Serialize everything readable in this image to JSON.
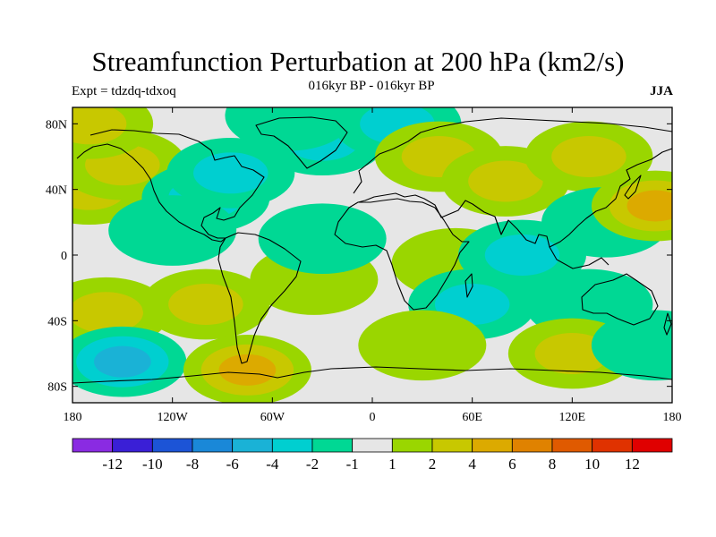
{
  "title": "Streamfunction Perturbation at 200 hPa (km2/s)",
  "subtitle": "016kyr BP - 016kyr BP",
  "left_label": "Expt = tdzdq-tdxoq",
  "right_label": "JJA",
  "lat_labels": [
    "80N",
    "40N",
    "0",
    "40S",
    "80S"
  ],
  "lon_labels": [
    "180",
    "120W",
    "60W",
    "0",
    "60E",
    "120E",
    "180"
  ],
  "colorbar": {
    "colors": [
      "#8a2be2",
      "#3a1fd6",
      "#1c54d6",
      "#1a88d8",
      "#1ab2d6",
      "#00cfd0",
      "#00d894",
      "#e6e6e6",
      "#9ad600",
      "#c8c800",
      "#dcaa00",
      "#e08200",
      "#e05a00",
      "#e03200",
      "#e00000"
    ],
    "labels": [
      "-12",
      "-10",
      "-8",
      "-6",
      "-4",
      "-2",
      "-1",
      "1",
      "2",
      "4",
      "6",
      "8",
      "10",
      "12"
    ]
  },
  "chart_data": {
    "type": "filled-contour-map",
    "title": "Streamfunction Perturbation at 200 hPa (km2/s)",
    "subtitle": "016kyr BP - 016kyr BP",
    "season": "JJA",
    "experiment": "tdzdq-tdxoq",
    "x_range_deg_lon": [
      -180,
      180
    ],
    "y_range_deg_lat": [
      -90,
      90
    ],
    "contour_levels": [
      -12,
      -10,
      -8,
      -6,
      -4,
      -2,
      -1,
      1,
      2,
      4,
      6,
      8,
      10,
      12
    ],
    "features": [
      {
        "lon": -170,
        "lat": 40,
        "value": 3.5
      },
      {
        "lon": -150,
        "lat": 55,
        "value": 2.0
      },
      {
        "lon": -170,
        "lat": 80,
        "value": 2.0
      },
      {
        "lon": -100,
        "lat": 35,
        "value": -3.0
      },
      {
        "lon": -85,
        "lat": 50,
        "value": -2.0
      },
      {
        "lon": -30,
        "lat": 70,
        "value": -2.5
      },
      {
        "lon": -50,
        "lat": 85,
        "value": -1.5
      },
      {
        "lon": -120,
        "lat": 15,
        "value": -1.5
      },
      {
        "lon": -160,
        "lat": -35,
        "value": 3.0
      },
      {
        "lon": -100,
        "lat": -30,
        "value": 2.0
      },
      {
        "lon": -150,
        "lat": -65,
        "value": -4.0
      },
      {
        "lon": -75,
        "lat": -70,
        "value": 4.0
      },
      {
        "lon": -35,
        "lat": -15,
        "value": 1.5
      },
      {
        "lon": -30,
        "lat": 10,
        "value": -1.5
      },
      {
        "lon": 15,
        "lat": 80,
        "value": -2.0
      },
      {
        "lon": 40,
        "lat": 60,
        "value": 2.0
      },
      {
        "lon": 50,
        "lat": -5,
        "value": 1.5
      },
      {
        "lon": 60,
        "lat": -30,
        "value": -2.0
      },
      {
        "lon": 30,
        "lat": -55,
        "value": 1.5
      },
      {
        "lon": 80,
        "lat": 45,
        "value": 2.5
      },
      {
        "lon": 90,
        "lat": 0,
        "value": -2.0
      },
      {
        "lon": 130,
        "lat": 60,
        "value": 2.5
      },
      {
        "lon": 140,
        "lat": 20,
        "value": -1.5
      },
      {
        "lon": 170,
        "lat": 30,
        "value": 4.0
      },
      {
        "lon": 130,
        "lat": -30,
        "value": -1.5
      },
      {
        "lon": 120,
        "lat": -60,
        "value": 2.0
      },
      {
        "lon": 170,
        "lat": -55,
        "value": -1.5
      }
    ]
  }
}
